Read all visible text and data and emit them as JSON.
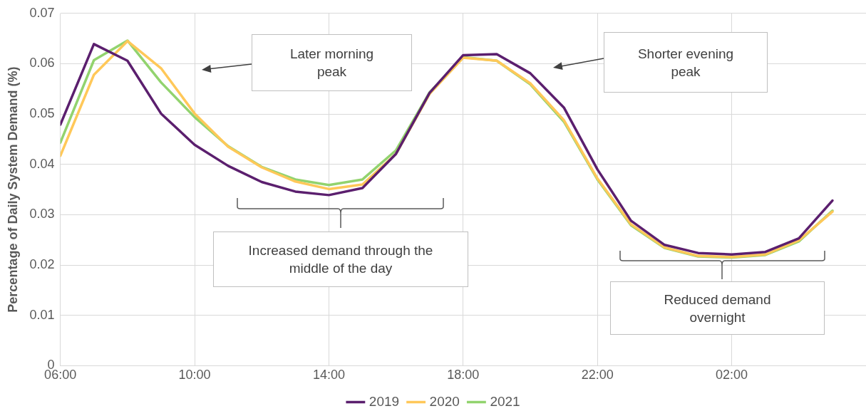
{
  "chart_data": {
    "type": "line",
    "ylabel": "Percentage of Daily System Demand (%)",
    "categories": [
      "06:00",
      null,
      null,
      null,
      "10:00",
      null,
      null,
      null,
      "14:00",
      null,
      null,
      null,
      "18:00",
      null,
      null,
      null,
      "22:00",
      null,
      null,
      null,
      "02:00",
      null,
      null,
      null
    ],
    "ylim": [
      0,
      0.07
    ],
    "yticks": [
      0,
      0.01,
      0.02,
      0.03,
      0.04,
      0.05,
      0.06,
      0.07
    ],
    "series": [
      {
        "name": "2019",
        "color": "#5b1f6e",
        "values": [
          0.0479,
          0.0639,
          0.0606,
          0.0501,
          0.0439,
          0.0397,
          0.0365,
          0.0346,
          0.0339,
          0.0353,
          0.0421,
          0.0542,
          0.0617,
          0.0619,
          0.0581,
          0.0513,
          0.039,
          0.0288,
          0.024,
          0.0224,
          0.0221,
          0.0226,
          0.0253,
          0.0328
        ]
      },
      {
        "name": "2020",
        "color": "#ffc859",
        "values": [
          0.0417,
          0.0578,
          0.0645,
          0.0591,
          0.0501,
          0.0435,
          0.0394,
          0.0366,
          0.0351,
          0.036,
          0.0421,
          0.054,
          0.0612,
          0.0606,
          0.0561,
          0.0488,
          0.0372,
          0.0281,
          0.0235,
          0.0218,
          0.0216,
          0.0221,
          0.0249,
          0.0306
        ]
      },
      {
        "name": "2021",
        "color": "#92d36e",
        "values": [
          0.0443,
          0.0607,
          0.0646,
          0.0563,
          0.0494,
          0.0436,
          0.0395,
          0.037,
          0.0359,
          0.037,
          0.0428,
          0.0543,
          0.0613,
          0.0606,
          0.0559,
          0.0485,
          0.037,
          0.0279,
          0.0234,
          0.0217,
          0.0215,
          0.022,
          0.0247,
          0.0308
        ]
      }
    ],
    "annotations": [
      "Later morning peak",
      "Shorter evening peak",
      "Increased demand through the middle of the day",
      "Reduced demand overnight"
    ],
    "grid": true,
    "legend": "bottom",
    "marker": "none",
    "line_style": "solid"
  }
}
